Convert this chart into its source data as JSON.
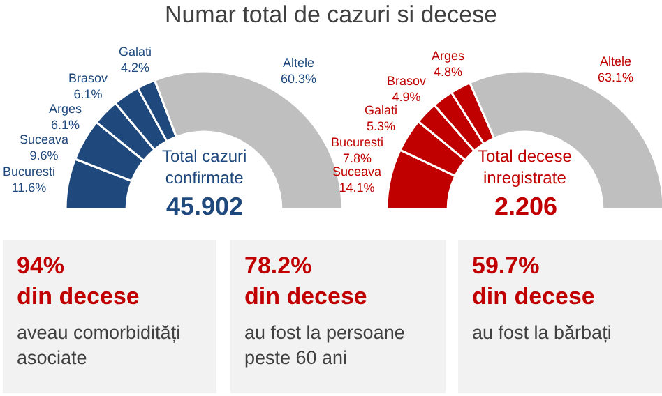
{
  "chart_data": [
    {
      "type": "donut",
      "title": "Numar total de cazuri si decese",
      "categories": [
        "Bucuresti",
        "Suceava",
        "Arges",
        "Brasov",
        "Galati",
        "Altele"
      ],
      "values": [
        11.6,
        9.6,
        6.1,
        6.1,
        4.2,
        60.3
      ],
      "value_labels": [
        "11.6%",
        "9.6%",
        "6.1%",
        "6.1%",
        "4.2%",
        "60.3%"
      ],
      "colors": [
        "#1f497d",
        "#1f497d",
        "#1f497d",
        "#1f497d",
        "#1f497d",
        "#bfbfbf"
      ],
      "annotations": [
        "Total cazuri\nconfirmate",
        "45.902"
      ]
    },
    {
      "type": "donut",
      "categories": [
        "Suceava",
        "Bucuresti",
        "Galati",
        "Brasov",
        "Arges",
        "Altele"
      ],
      "values": [
        14.1,
        7.8,
        5.3,
        4.9,
        4.8,
        63.1
      ],
      "value_labels": [
        "14.1%",
        "7.8%",
        "5.3%",
        "4.9%",
        "4.8%",
        "63.1%"
      ],
      "colors": [
        "#c00000",
        "#c00000",
        "#c00000",
        "#c00000",
        "#c00000",
        "#bfbfbf"
      ],
      "annotations": [
        "Total decese\ninregistrate",
        "2.206"
      ]
    },
    {
      "type": "other",
      "annotations": [
        "94%",
        "din decese",
        "aveau comorbidități asociate",
        "78.2%",
        "din decese",
        "au fost la persoane peste 60 ani",
        "59.7%",
        "din decese",
        "au fost la bărbați"
      ]
    }
  ]
}
